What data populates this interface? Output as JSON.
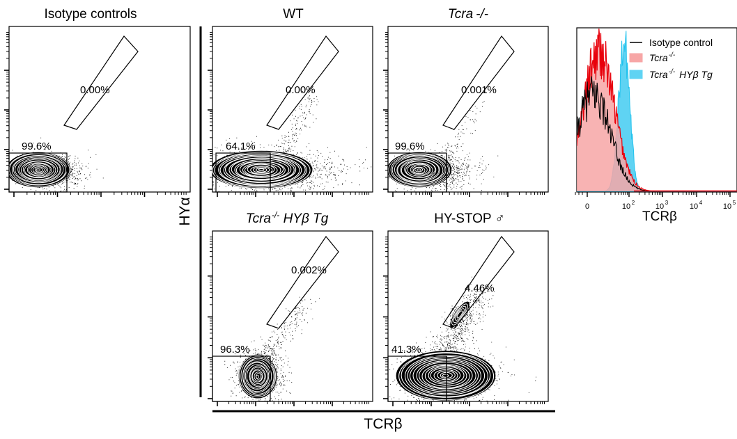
{
  "figure": {
    "y_axis_label": "HYα",
    "x_axis_label": "TCRβ"
  },
  "colors": {
    "isotype": "#000000",
    "tcra_ko": "#e8000b",
    "tcra_ko_fill": "#f7a6a6",
    "hyb_tg": "#22c3ee",
    "hyb_tg_fill": "#5fd3f3"
  },
  "panels": [
    {
      "title": "Isotype controls",
      "italic": false,
      "gate_high": "0.00%",
      "gate_low": "99.6%"
    },
    {
      "title": "WT",
      "italic": false,
      "gate_high": "0.00%",
      "gate_low": "64.1%"
    },
    {
      "title": "Tcra",
      "title_sup": "-/-",
      "italic": true,
      "gate_high": "0.001%",
      "gate_low": "99.6%"
    },
    {
      "title": "Tcra",
      "title_sup": "-/-",
      "title_suffix": " HYβ Tg",
      "italic": true,
      "gate_high": "0.002%",
      "gate_low": "96.3%"
    },
    {
      "title": "HY-STOP ♂",
      "italic": false,
      "gate_high": "4.46%",
      "gate_low": "41.3%"
    }
  ],
  "histogram": {
    "legend": [
      {
        "label": "Isotype control"
      },
      {
        "label": "Tcra",
        "sup": "-/-"
      },
      {
        "label": "Tcra",
        "sup": "-/-",
        "suffix": "HYβ Tg"
      }
    ],
    "x_label": "TCRβ"
  },
  "chart_data": [
    {
      "type": "scatter",
      "title": "Isotype controls",
      "annotations": [
        "0.00%",
        "99.6%"
      ],
      "xscale": "log",
      "yscale": "log"
    },
    {
      "type": "scatter",
      "title": "WT",
      "annotations": [
        "0.00%",
        "64.1%"
      ],
      "xscale": "log",
      "yscale": "log"
    },
    {
      "type": "scatter",
      "title": "Tcra -/-",
      "annotations": [
        "0.001%",
        "99.6%"
      ],
      "xscale": "log",
      "yscale": "log"
    },
    {
      "type": "scatter",
      "title": "Tcra -/- HYβ Tg",
      "annotations": [
        "0.002%",
        "96.3%"
      ],
      "xscale": "log",
      "yscale": "log"
    },
    {
      "type": "scatter",
      "title": "HY-STOP ♂",
      "annotations": [
        "4.46%",
        "41.3%"
      ],
      "xscale": "log",
      "yscale": "log"
    },
    {
      "type": "area",
      "xlabel": "TCRβ",
      "xscale": "log",
      "x_ticks": [
        "0",
        "10^2",
        "10^3",
        "10^4",
        "10^5"
      ],
      "x": [
        0,
        10,
        20,
        30,
        50,
        70,
        100,
        150,
        200,
        300,
        500,
        1000,
        100000
      ],
      "series": [
        {
          "name": "Isotype control",
          "values": [
            0.3,
            0.55,
            0.7,
            0.75,
            0.6,
            0.35,
            0.1,
            0.02,
            0,
            0,
            0,
            0,
            0
          ]
        },
        {
          "name": "Tcra -/-",
          "values": [
            0.2,
            0.45,
            0.72,
            0.85,
            0.55,
            0.3,
            0.08,
            0.02,
            0,
            0,
            0,
            0,
            0
          ]
        },
        {
          "name": "Tcra -/- HYβ Tg",
          "values": [
            0,
            0,
            0.05,
            0.12,
            0.3,
            0.62,
            0.9,
            0.45,
            0.15,
            0.05,
            0.02,
            0,
            0
          ]
        }
      ]
    }
  ]
}
